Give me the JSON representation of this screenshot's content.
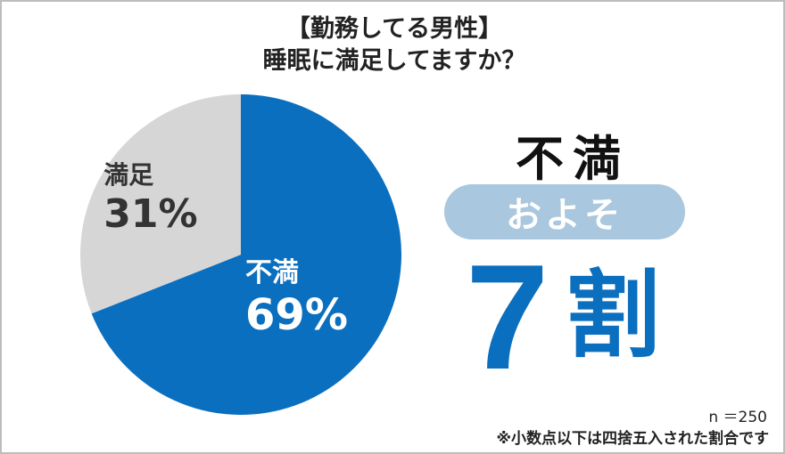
{
  "title_line1": "【勤務してる男性】",
  "title_line2": "睡眠に満足してますか？",
  "chart_data": {
    "type": "pie",
    "title": "【勤務してる男性】睡眠に満足してますか？",
    "slices": [
      {
        "label": "不満",
        "percent_text": "69%",
        "value": 69,
        "color": "#0b6fbf",
        "label_color": "#ffffff"
      },
      {
        "label": "満足",
        "percent_text": "31%",
        "value": 31,
        "color": "#d6d6d6",
        "label_color": "#333333"
      }
    ],
    "start": "top, clockwise"
  },
  "summary": {
    "word": "不満",
    "qualifier": "およそ",
    "number": "7",
    "unit": "割"
  },
  "sample_size": "n ＝250",
  "footnote": "※小数点以下は四捨五入された割合です"
}
